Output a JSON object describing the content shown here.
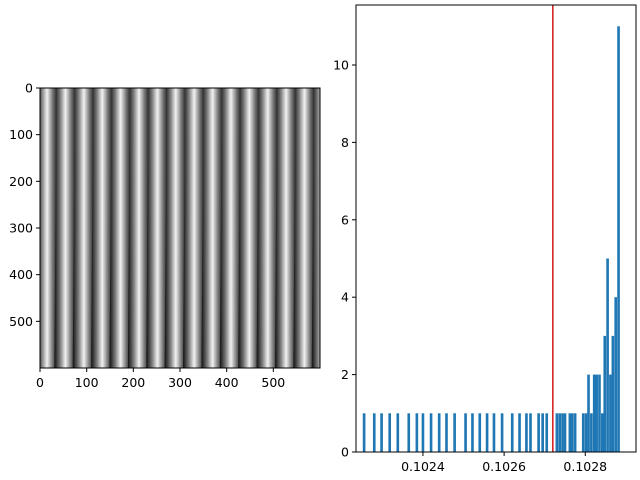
{
  "chart_data": [
    {
      "type": "image",
      "description_kind": "grayscale vertical fringe pattern",
      "xlim": [
        0,
        600
      ],
      "ylim": [
        600,
        0
      ],
      "xticks": [
        0,
        100,
        200,
        300,
        400,
        500
      ],
      "yticks": [
        0,
        100,
        200,
        300,
        400,
        500
      ],
      "fringe_period": 39.4,
      "fringe_phase": 13,
      "colormap": "gray"
    },
    {
      "type": "histogram",
      "bar_color": "#1f77b4",
      "vline": {
        "x": 0.10272,
        "color": "#d62728"
      },
      "xlim": [
        0.102235,
        0.102925
      ],
      "ylim": [
        0,
        11.55
      ],
      "xticks": [
        0.1024,
        0.1026,
        0.1028
      ],
      "xtick_labels": [
        "0.1024",
        "0.1026",
        "0.1028"
      ],
      "yticks": [
        0,
        2,
        4,
        6,
        8,
        10
      ],
      "bin_width": 6.5e-06,
      "bars": [
        {
          "x": 0.102255,
          "h": 1
        },
        {
          "x": 0.10228,
          "h": 1
        },
        {
          "x": 0.102298,
          "h": 1
        },
        {
          "x": 0.102318,
          "h": 1
        },
        {
          "x": 0.102338,
          "h": 1
        },
        {
          "x": 0.102365,
          "h": 1
        },
        {
          "x": 0.102385,
          "h": 1
        },
        {
          "x": 0.1024,
          "h": 1
        },
        {
          "x": 0.10242,
          "h": 1
        },
        {
          "x": 0.10244,
          "h": 1
        },
        {
          "x": 0.102458,
          "h": 1
        },
        {
          "x": 0.102478,
          "h": 1
        },
        {
          "x": 0.102505,
          "h": 1
        },
        {
          "x": 0.102522,
          "h": 1
        },
        {
          "x": 0.10254,
          "h": 1
        },
        {
          "x": 0.102558,
          "h": 1
        },
        {
          "x": 0.102575,
          "h": 1
        },
        {
          "x": 0.102595,
          "h": 1
        },
        {
          "x": 0.10262,
          "h": 1
        },
        {
          "x": 0.102638,
          "h": 1
        },
        {
          "x": 0.102655,
          "h": 1
        },
        {
          "x": 0.102665,
          "h": 1
        },
        {
          "x": 0.102685,
          "h": 1
        },
        {
          "x": 0.102695,
          "h": 1
        },
        {
          "x": 0.102705,
          "h": 1
        },
        {
          "x": 0.10273,
          "h": 1
        },
        {
          "x": 0.102737,
          "h": 1
        },
        {
          "x": 0.102744,
          "h": 1
        },
        {
          "x": 0.10275,
          "h": 1
        },
        {
          "x": 0.102762,
          "h": 1
        },
        {
          "x": 0.102768,
          "h": 1
        },
        {
          "x": 0.102775,
          "h": 1
        },
        {
          "x": 0.102795,
          "h": 1
        },
        {
          "x": 0.102802,
          "h": 1
        },
        {
          "x": 0.102808,
          "h": 2
        },
        {
          "x": 0.102815,
          "h": 1
        },
        {
          "x": 0.102822,
          "h": 2
        },
        {
          "x": 0.102828,
          "h": 2
        },
        {
          "x": 0.102835,
          "h": 2
        },
        {
          "x": 0.102842,
          "h": 1
        },
        {
          "x": 0.102848,
          "h": 3
        },
        {
          "x": 0.102855,
          "h": 5
        },
        {
          "x": 0.102862,
          "h": 2
        },
        {
          "x": 0.102868,
          "h": 3
        },
        {
          "x": 0.102875,
          "h": 4
        },
        {
          "x": 0.102882,
          "h": 11
        }
      ]
    }
  ]
}
